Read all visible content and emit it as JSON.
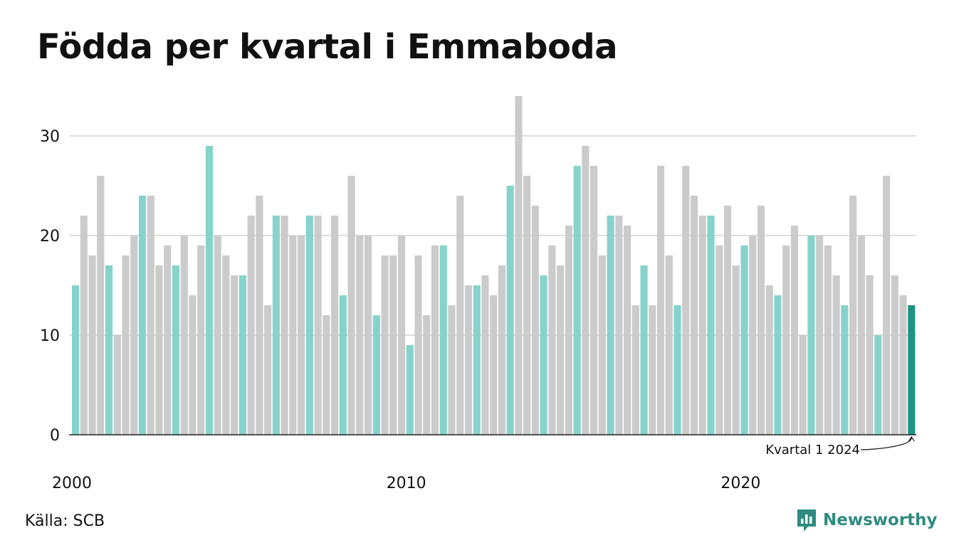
{
  "title": "Födda per kvartal i Emmaboda",
  "source": "Källa: SCB",
  "brand": "Newsworthy",
  "colors": {
    "q1": "#86d3cb",
    "other": "#cbcbcb",
    "highlight": "#1f9383",
    "grid": "#dedede",
    "axis": "#222222",
    "brand": "#2f8b80"
  },
  "chart_data": {
    "type": "bar",
    "title": "Födda per kvartal i Emmaboda",
    "start_year": 2000,
    "quarters_per_year": 4,
    "x_tick_labels": [
      "2000",
      "2010",
      "2020"
    ],
    "y_ticks": [
      0,
      10,
      20,
      30
    ],
    "ylim": [
      0,
      34
    ],
    "grid": true,
    "annotation": "Kvartal 1 2024",
    "series": [
      {
        "values": [
          15,
          22,
          18,
          26,
          17,
          10,
          18,
          20,
          24,
          24,
          17,
          19,
          17,
          20,
          14,
          19,
          29,
          20,
          18,
          16,
          16,
          22,
          24,
          13,
          22,
          22,
          20,
          20,
          22,
          22,
          12,
          22,
          14,
          26,
          20,
          20,
          12,
          18,
          18,
          20,
          9,
          18,
          12,
          19,
          19,
          13,
          24,
          15,
          15,
          16,
          14,
          17,
          25,
          34,
          26,
          23,
          16,
          19,
          17,
          21,
          27,
          29,
          27,
          18,
          22,
          22,
          21,
          13,
          17,
          13,
          27,
          18,
          13,
          27,
          24,
          22,
          22,
          19,
          23,
          17,
          19,
          20,
          23,
          15,
          14,
          19,
          21,
          10,
          20,
          20,
          19,
          16,
          13,
          24,
          20,
          16,
          10,
          26,
          16,
          14,
          13
        ]
      }
    ]
  }
}
